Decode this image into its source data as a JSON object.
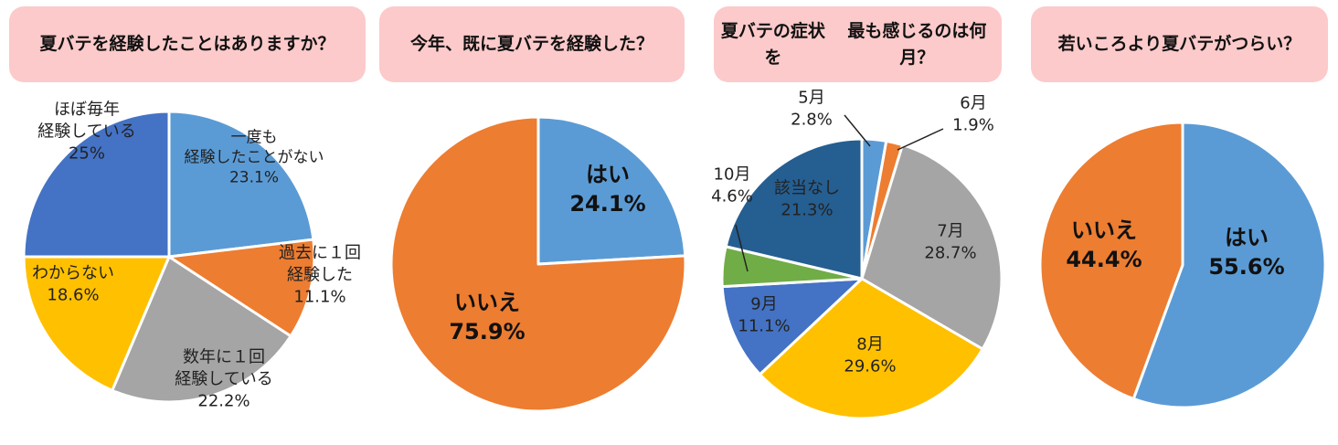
{
  "chart_data": [
    {
      "type": "pie",
      "title": "夏バテを\n経験したことはありますか？",
      "slices": [
        {
          "label": "一度も\n経験したことがない",
          "value": 23.1,
          "display": "23.1%",
          "color": "#5b9bd5"
        },
        {
          "label": "過去に１回\n経験した",
          "value": 11.1,
          "display": "11.1%",
          "color": "#ed7d31"
        },
        {
          "label": "数年に１回\n経験している",
          "value": 22.2,
          "display": "22.2%",
          "color": "#a5a5a5"
        },
        {
          "label": "わからない",
          "value": 18.6,
          "display": "18.6%",
          "color": "#ffc000"
        },
        {
          "label": "ほぼ毎年\n経験している",
          "value": 25,
          "display": "25%",
          "color": "#4472c4"
        }
      ]
    },
    {
      "type": "pie",
      "title": "今年、既に夏バテを経験した？",
      "slices": [
        {
          "label": "はい",
          "value": 24.1,
          "display": "24.1%",
          "color": "#5b9bd5"
        },
        {
          "label": "いいえ",
          "value": 75.9,
          "display": "75.9%",
          "color": "#ed7d31"
        }
      ]
    },
    {
      "type": "pie",
      "title": "夏バテの症状を\n最も感じるのは何月？",
      "slices": [
        {
          "label": "5月",
          "value": 2.8,
          "display": "2.8%",
          "color": "#5b9bd5"
        },
        {
          "label": "6月",
          "value": 1.9,
          "display": "1.9%",
          "color": "#ed7d31"
        },
        {
          "label": "7月",
          "value": 28.7,
          "display": "28.7%",
          "color": "#a5a5a5"
        },
        {
          "label": "8月",
          "value": 29.6,
          "display": "29.6%",
          "color": "#ffc000"
        },
        {
          "label": "9月",
          "value": 11.1,
          "display": "11.1%",
          "color": "#4472c4"
        },
        {
          "label": "10月",
          "value": 4.6,
          "display": "4.6%",
          "color": "#70ad47"
        },
        {
          "label": "該当なし",
          "value": 21.3,
          "display": "21.3%",
          "color": "#255e91"
        }
      ]
    },
    {
      "type": "pie",
      "title": "若いころより\n夏バテがつらい？",
      "slices": [
        {
          "label": "はい",
          "value": 55.6,
          "display": "55.6%",
          "color": "#5b9bd5"
        },
        {
          "label": "いいえ",
          "value": 44.4,
          "display": "44.4%",
          "color": "#ed7d31"
        }
      ]
    }
  ]
}
